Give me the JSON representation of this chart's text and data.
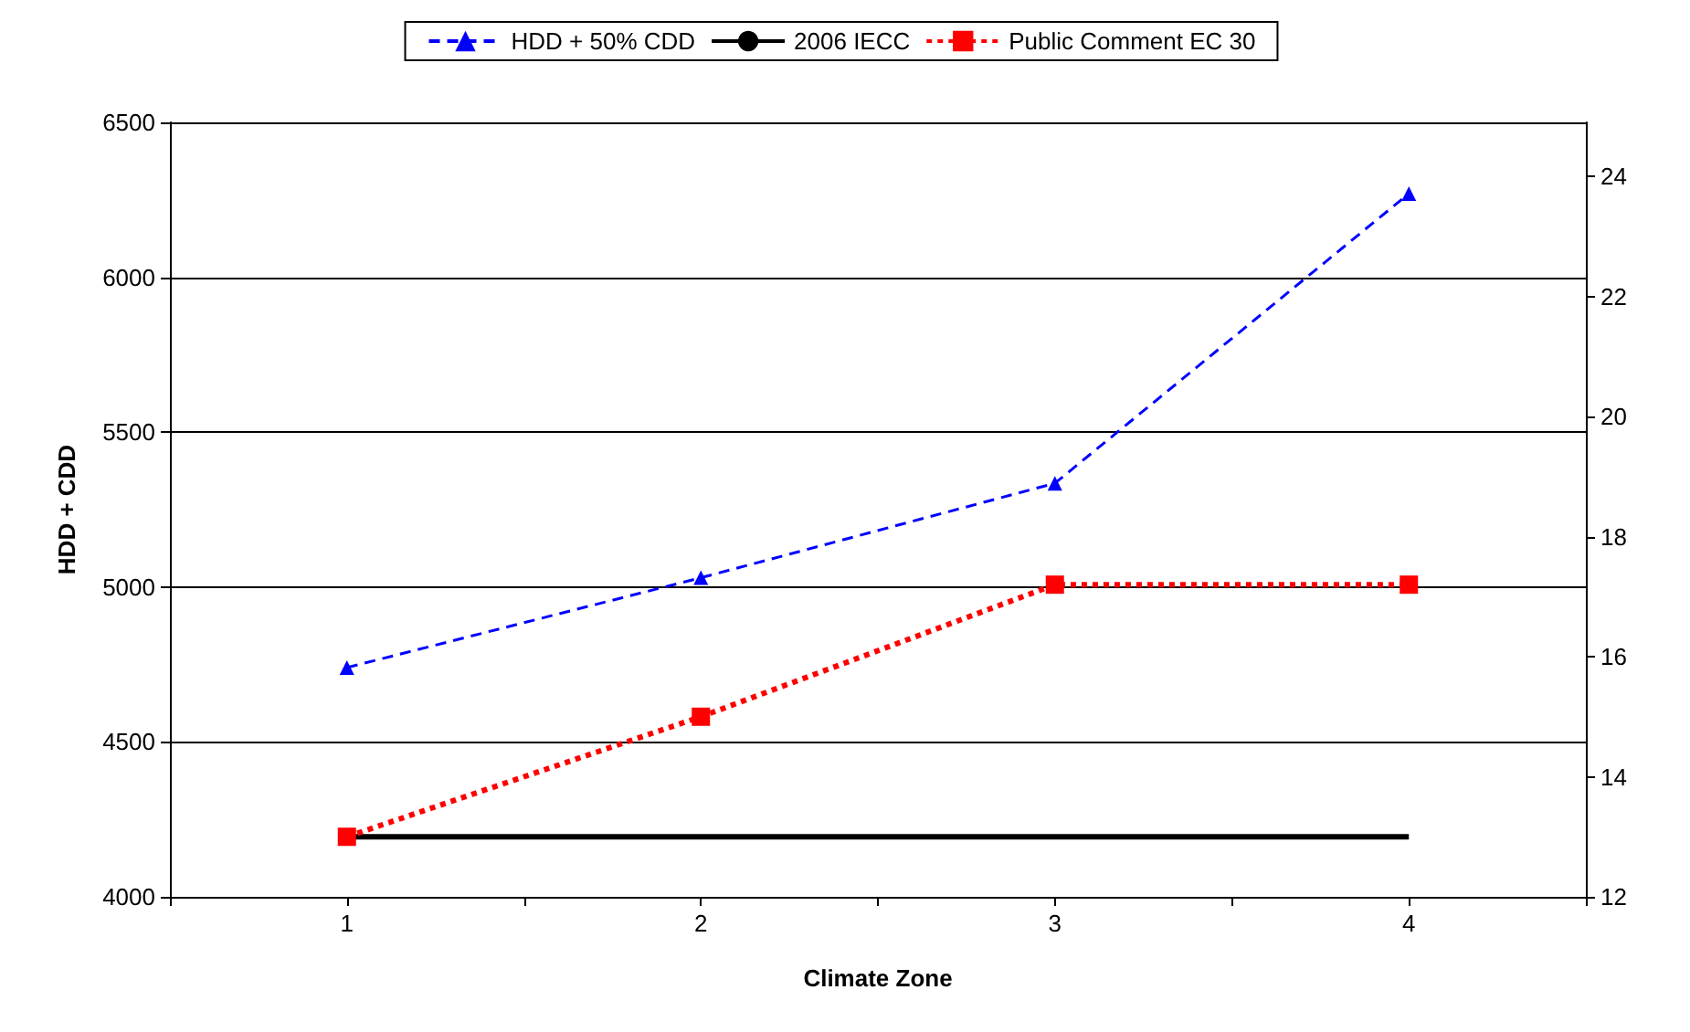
{
  "chart_data": {
    "type": "line",
    "xlabel": "Climate Zone",
    "ylabel": "HDD + CDD",
    "x": [
      1,
      2,
      3,
      4
    ],
    "xlim": [
      0.5,
      4.5
    ],
    "xticks": [
      {
        "value": 0.5,
        "label": null
      },
      1,
      {
        "value": 1.5,
        "label": null
      },
      2,
      {
        "value": 2.5,
        "label": null
      },
      3,
      {
        "value": 3.5,
        "label": null
      },
      4,
      {
        "value": 4.5,
        "label": null
      }
    ],
    "ylim": [
      4000,
      6500
    ],
    "yticks": [
      4000,
      4500,
      5000,
      5500,
      6000,
      6500
    ],
    "y2lim": [
      12,
      24.9
    ],
    "y2ticks": [
      12,
      14,
      16,
      18,
      20,
      22,
      24
    ],
    "grid": "y",
    "legend": "top",
    "series": [
      {
        "name": "HDD + 50% CDD",
        "color": "#0000ff",
        "values": [
          4740,
          5030,
          5335,
          6270
        ],
        "marker": "triangle",
        "line_style": "dashed"
      },
      {
        "name": "2006 IECC",
        "color": "#000000",
        "values": [
          13,
          13,
          13,
          13
        ],
        "axis": "y2",
        "marker": "none",
        "line_style": "solid"
      },
      {
        "name": "Public Comment EC 30",
        "color": "#ff0000",
        "values": [
          13,
          15,
          17.2,
          17.2
        ],
        "axis": "y2",
        "marker": "square",
        "line_style": "dotted"
      }
    ]
  }
}
